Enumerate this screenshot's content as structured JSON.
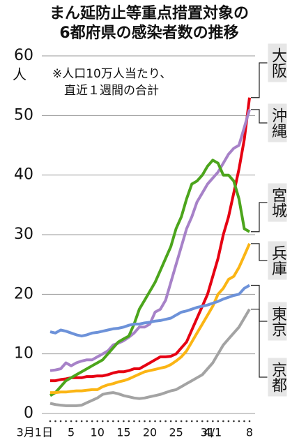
{
  "chart_data": {
    "type": "line",
    "title": [
      "まん延防止等重点措置対象の",
      "6都府県の感染者数の推移"
    ],
    "y_unit": "人",
    "annotation": [
      "※人口10万人当たり、",
      "直近１週間の合計"
    ],
    "categories": [
      "3月1日",
      null,
      null,
      null,
      "5",
      null,
      null,
      null,
      null,
      "10",
      null,
      null,
      null,
      null,
      "15",
      null,
      null,
      null,
      null,
      "20",
      null,
      null,
      null,
      null,
      "25",
      null,
      null,
      null,
      null,
      null,
      "31",
      "4/1",
      null,
      null,
      null,
      null,
      null,
      null,
      "8"
    ],
    "ylim": [
      0,
      60
    ],
    "yticks": [
      0,
      10,
      20,
      30,
      40,
      50,
      60
    ],
    "grid": true,
    "series": [
      {
        "name": "大阪",
        "color": "#e60012",
        "values": [
          5.5,
          5.5,
          5.7,
          5.8,
          6,
          6,
          6,
          6.2,
          6.2,
          6.3,
          6.3,
          6.5,
          6.8,
          7,
          7,
          7.2,
          7.5,
          7.5,
          8,
          8.5,
          9,
          9.5,
          9.5,
          9.6,
          10,
          11,
          12,
          14,
          16,
          18,
          20,
          23,
          26,
          30,
          33,
          37,
          41,
          46,
          53
        ]
      },
      {
        "name": "沖縄",
        "color": "#a782c8",
        "values": [
          7.2,
          7.3,
          7.5,
          8.5,
          8,
          8.5,
          8.8,
          9,
          9,
          9.5,
          10,
          10.5,
          11.5,
          11.8,
          12.2,
          12.8,
          13.5,
          14.5,
          14.5,
          15,
          17,
          17.5,
          19,
          22,
          25,
          28,
          31,
          33,
          35.5,
          37,
          38.5,
          39.5,
          40.5,
          42,
          43.5,
          44.5,
          45,
          48,
          51
        ]
      },
      {
        "name": "宮城",
        "color": "#4ca51c",
        "values": [
          3,
          3.5,
          4.5,
          5.5,
          6,
          6.5,
          7,
          7.5,
          8,
          8.5,
          9,
          10,
          11,
          12,
          12.5,
          13,
          15,
          17.5,
          19,
          20.5,
          22,
          24,
          26,
          28,
          31,
          33,
          36,
          38.5,
          39,
          40,
          41.5,
          42.5,
          42,
          40,
          40,
          39,
          36,
          31,
          30.5
        ]
      },
      {
        "name": "兵庫",
        "color": "#fbb514",
        "values": [
          3.5,
          3.5,
          3.6,
          3.6,
          3.7,
          3.8,
          3.8,
          3.9,
          4,
          4,
          4.5,
          4.8,
          5,
          5.3,
          5.5,
          5.8,
          6.2,
          6.6,
          7,
          7.2,
          7.4,
          7.6,
          7.8,
          8.2,
          8.8,
          9.5,
          10.5,
          12,
          13.5,
          15,
          16.5,
          18,
          20,
          21,
          22.5,
          23,
          24.5,
          26.5,
          28.5
        ]
      },
      {
        "name": "東京",
        "color": "#6d92d9",
        "values": [
          13.7,
          13.5,
          14,
          13.8,
          13.5,
          13.2,
          13,
          13.2,
          13.5,
          13.6,
          13.8,
          14,
          14.2,
          14.3,
          14.5,
          14.8,
          15,
          15,
          15.2,
          15.3,
          15.5,
          15.6,
          15.8,
          16,
          16.5,
          17,
          17.2,
          17.5,
          17.8,
          18,
          18.2,
          18.5,
          18.8,
          19.2,
          19.5,
          19.8,
          20,
          21,
          21.5
        ]
      },
      {
        "name": "京都",
        "color": "#a3a3a3",
        "values": [
          1.7,
          1.5,
          1.4,
          1.3,
          1.3,
          1.3,
          1.4,
          1.8,
          2.2,
          2.6,
          3.2,
          3.4,
          3.5,
          3.3,
          3,
          2.8,
          2.6,
          2.5,
          2.6,
          2.8,
          3,
          3.2,
          3.5,
          3.8,
          4,
          4.5,
          5,
          5.5,
          6,
          6.5,
          7.5,
          8.5,
          10,
          11.5,
          12.5,
          13.5,
          14.5,
          16,
          17.5
        ]
      }
    ]
  }
}
